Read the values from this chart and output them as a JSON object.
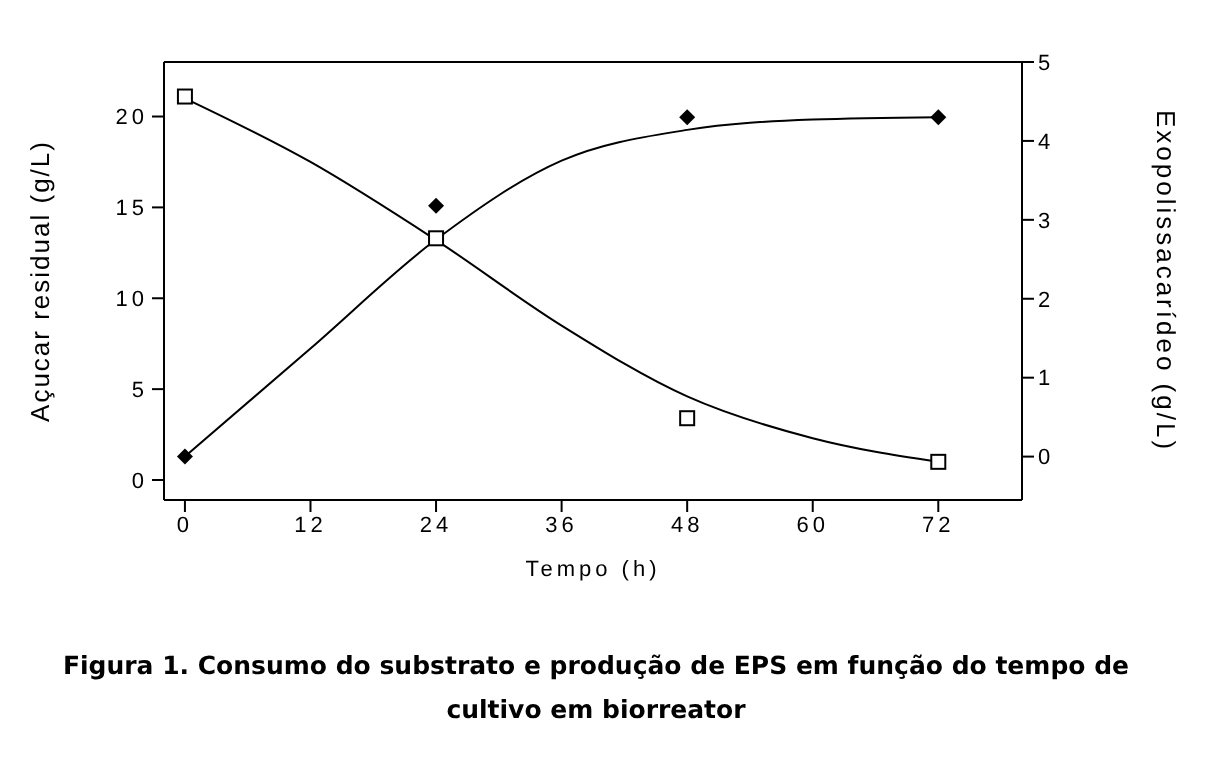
{
  "chart_data": {
    "type": "scatter",
    "xlabel": "Tempo (h)",
    "ylabel": "Açucar residual (g/L)",
    "y2label": "Exopolissacarídeo (g/L)",
    "xlim": [
      -2,
      80
    ],
    "xticks": [
      0,
      12,
      24,
      36,
      48,
      60,
      72
    ],
    "ylim": [
      -1.1,
      23
    ],
    "yticks": [
      0,
      5,
      10,
      15,
      20
    ],
    "y2lim": [
      -0.55,
      5
    ],
    "y2ticks": [
      0,
      1,
      2,
      3,
      4,
      5
    ],
    "grid": false,
    "legend": false,
    "series": [
      {
        "marker": "square",
        "color": "#000000",
        "x": [
          0,
          24,
          48,
          72
        ],
        "values": [
          21.1,
          13.3,
          3.4,
          1.0
        ]
      },
      {
        "marker": "diamond",
        "color": "#000000",
        "axis": "y2",
        "x": [
          0,
          24,
          48,
          72
        ],
        "values": [
          0,
          3.18,
          4.3,
          4.3
        ]
      },
      {
        "type": "line",
        "marker": "none",
        "color": "#000000",
        "x": [
          0,
          12,
          24,
          36,
          48,
          60,
          72
        ],
        "values": [
          21,
          17.5,
          13.2,
          8.5,
          4.6,
          2.3,
          1.0
        ]
      },
      {
        "type": "line",
        "marker": "none",
        "color": "#000000",
        "axis": "y2",
        "x": [
          0,
          12,
          24,
          36,
          48,
          60,
          72
        ],
        "values": [
          0,
          1.37,
          2.75,
          3.75,
          4.14,
          4.27,
          4.3
        ]
      }
    ],
    "annotations": [
      "Figura 1. Consumo do substrato e produção de EPS em função do tempo de cultivo em biorreator"
    ]
  }
}
